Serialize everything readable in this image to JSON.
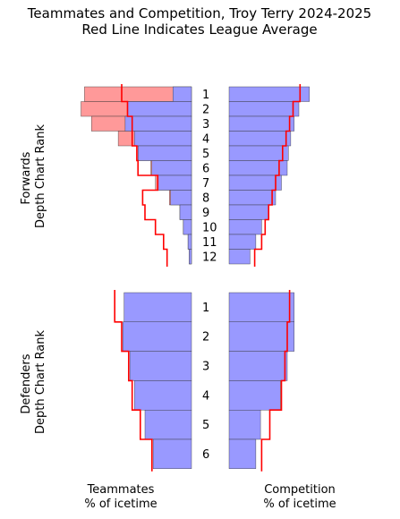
{
  "title_line1": "Teammates and Competition, Troy Terry 2024-2025",
  "title_line2": "Red Line Indicates League Average",
  "row_labels": {
    "forwards": [
      "Forwards",
      "Depth Chart Rank"
    ],
    "defenders": [
      "Defenders",
      "Depth Chart Rank"
    ]
  },
  "x_labels": {
    "teammates": [
      "Teammates",
      "% of icetime"
    ],
    "competition": [
      "Competition",
      "% of icetime"
    ]
  },
  "colors": {
    "bar": "#9999ff",
    "excess": "#ff9999",
    "average_line": "#ff0000",
    "bar_edge": "#333333"
  },
  "chart_data": [
    {
      "type": "bar",
      "orientation": "horizontal",
      "panel": "teammates-forwards",
      "categories": [
        "1",
        "2",
        "3",
        "4",
        "5",
        "6",
        "7",
        "8",
        "9",
        "10",
        "11",
        "12"
      ],
      "series": [
        {
          "values": [
            16,
            55,
            57,
            49,
            46,
            34,
            29,
            18,
            10,
            7,
            3,
            2
          ]
        },
        {
          "values": [
            92,
            95,
            86,
            63,
            47,
            35,
            31,
            19,
            10,
            7,
            3,
            2
          ]
        }
      ],
      "league_average": [
        60,
        55,
        51,
        51,
        47,
        46,
        29,
        42,
        40,
        31,
        24,
        21
      ],
      "xlim": [
        0,
        100
      ]
    },
    {
      "type": "bar",
      "orientation": "horizontal",
      "panel": "competition-forwards",
      "categories": [
        "1",
        "2",
        "3",
        "4",
        "5",
        "6",
        "7",
        "8",
        "9",
        "10",
        "11",
        "12"
      ],
      "series": [
        {
          "values": [
            69,
            60,
            56,
            53,
            51,
            50,
            45,
            40,
            34,
            28,
            23,
            18
          ]
        }
      ],
      "league_average": [
        61,
        55,
        52,
        49,
        46,
        43,
        40,
        37,
        34,
        31,
        28,
        22
      ],
      "xlim": [
        0,
        100
      ]
    },
    {
      "type": "bar",
      "orientation": "horizontal",
      "panel": "teammates-defenders",
      "categories": [
        "1",
        "2",
        "3",
        "4",
        "5",
        "6"
      ],
      "series": [
        {
          "values": [
            58,
            59,
            53,
            49,
            40,
            33
          ]
        }
      ],
      "league_average": [
        66,
        60,
        54,
        51,
        44,
        34
      ],
      "xlim": [
        0,
        100
      ]
    },
    {
      "type": "bar",
      "orientation": "horizontal",
      "panel": "competition-defenders",
      "categories": [
        "1",
        "2",
        "3",
        "4",
        "5",
        "6"
      ],
      "series": [
        {
          "values": [
            56,
            56,
            50,
            44,
            27,
            23
          ]
        }
      ],
      "league_average": [
        52,
        50,
        48,
        45,
        35,
        28
      ],
      "xlim": [
        0,
        100
      ]
    }
  ]
}
